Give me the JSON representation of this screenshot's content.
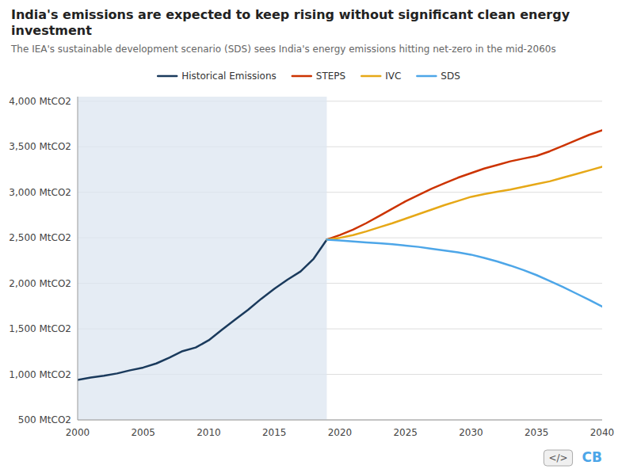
{
  "chart_data": {
    "type": "line",
    "title": "India's emissions are expected to keep rising without significant clean energy investment",
    "subtitle": "The IEA's sustainable development scenario (SDS) sees India's energy emissions hitting net-zero in the mid-2060s",
    "x": [
      2000,
      2001,
      2002,
      2003,
      2004,
      2005,
      2006,
      2007,
      2008,
      2009,
      2010,
      2011,
      2012,
      2013,
      2014,
      2015,
      2016,
      2017,
      2018,
      2019,
      2020,
      2021,
      2022,
      2023,
      2024,
      2025,
      2026,
      2027,
      2028,
      2029,
      2030,
      2031,
      2032,
      2033,
      2034,
      2035,
      2036,
      2037,
      2038,
      2039,
      2040
    ],
    "series": [
      {
        "name": "Historical Emissions",
        "color": "#1a3a5c",
        "values": [
          940,
          965,
          985,
          1010,
          1045,
          1075,
          1120,
          1185,
          1255,
          1295,
          1375,
          1490,
          1600,
          1710,
          1830,
          1940,
          2040,
          2130,
          2270,
          2480,
          null,
          null,
          null,
          null,
          null,
          null,
          null,
          null,
          null,
          null,
          null,
          null,
          null,
          null,
          null,
          null,
          null,
          null,
          null,
          null,
          null
        ]
      },
      {
        "name": "STEPS",
        "color": "#cc3300",
        "values": [
          null,
          null,
          null,
          null,
          null,
          null,
          null,
          null,
          null,
          null,
          null,
          null,
          null,
          null,
          null,
          null,
          null,
          null,
          null,
          2480,
          2530,
          2590,
          2660,
          2740,
          2820,
          2900,
          2970,
          3040,
          3100,
          3160,
          3210,
          3260,
          3300,
          3340,
          3370,
          3400,
          3450,
          3510,
          3570,
          3630,
          3680
        ]
      },
      {
        "name": "IVC",
        "color": "#e6a817",
        "values": [
          null,
          null,
          null,
          null,
          null,
          null,
          null,
          null,
          null,
          null,
          null,
          null,
          null,
          null,
          null,
          null,
          null,
          null,
          null,
          2480,
          2500,
          2530,
          2570,
          2615,
          2660,
          2710,
          2760,
          2810,
          2860,
          2905,
          2950,
          2980,
          3005,
          3030,
          3060,
          3090,
          3120,
          3160,
          3200,
          3240,
          3280
        ]
      },
      {
        "name": "SDS",
        "color": "#4da6e8",
        "values": [
          null,
          null,
          null,
          null,
          null,
          null,
          null,
          null,
          null,
          null,
          null,
          null,
          null,
          null,
          null,
          null,
          null,
          null,
          null,
          2480,
          2470,
          2460,
          2450,
          2440,
          2430,
          2415,
          2400,
          2380,
          2360,
          2340,
          2315,
          2280,
          2240,
          2195,
          2145,
          2090,
          2025,
          1960,
          1890,
          1820,
          1745
        ]
      }
    ],
    "shaded_region": [
      2000,
      2019
    ],
    "xlim": [
      2000,
      2040
    ],
    "ylim": [
      500,
      4050
    ],
    "xticks": [
      2000,
      2005,
      2010,
      2015,
      2020,
      2025,
      2030,
      2035,
      2040
    ],
    "yticks": [
      {
        "value": 500,
        "label": "500 MtCO2"
      },
      {
        "value": 1000,
        "label": "1,000 MtCO2"
      },
      {
        "value": 1500,
        "label": "1,500 MtCO2"
      },
      {
        "value": 2000,
        "label": "2,000 MtCO2"
      },
      {
        "value": 2500,
        "label": "2,500 MtCO2"
      },
      {
        "value": 3000,
        "label": "3,000 MtCO2"
      },
      {
        "value": 3500,
        "label": "3,500 MtCO2"
      },
      {
        "value": 4000,
        "label": "4,000 MtCO2"
      }
    ],
    "grid": true,
    "legend": "top",
    "annotations": [
      "</>",
      "CB"
    ]
  }
}
